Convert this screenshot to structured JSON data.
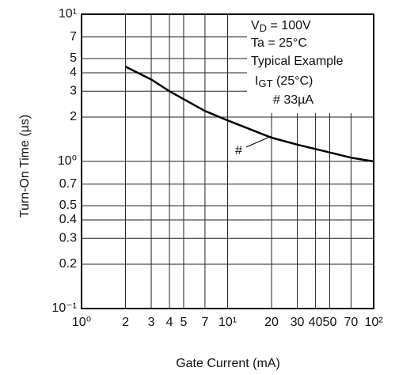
{
  "chart_data": {
    "type": "line",
    "x_label": "Gate Current  (mA)",
    "y_label": "Turn-On Time  (µs)",
    "xscale": "log",
    "yscale": "log",
    "grid": true,
    "xlim": [
      1,
      100
    ],
    "ylim": [
      0.1,
      10
    ],
    "xticks": [
      {
        "value": 1,
        "label": "10⁰"
      },
      2,
      3,
      4,
      5,
      7,
      {
        "value": 10,
        "label": "10¹"
      },
      20,
      30,
      40,
      50,
      70,
      {
        "value": 100,
        "label": "10²"
      }
    ],
    "yticks": [
      {
        "value": 0.1,
        "label": "10⁻¹"
      },
      0.2,
      0.3,
      0.4,
      0.5,
      0.7,
      {
        "value": 1,
        "label": "10⁰"
      },
      2,
      3,
      4,
      5,
      7,
      {
        "value": 10,
        "label": "10¹"
      }
    ],
    "x": [
      2,
      3,
      4,
      5,
      7,
      10,
      20,
      30,
      50,
      70,
      100
    ],
    "series": [
      {
        "color": "#000000",
        "values": [
          4.4,
          3.6,
          3.0,
          2.65,
          2.2,
          1.9,
          1.45,
          1.3,
          1.15,
          1.06,
          1.0
        ]
      }
    ],
    "annotations": [
      {
        "main": "V",
        "sub": "D",
        "tail": " = 100V"
      },
      {
        "main": "Ta = 25°C"
      },
      {
        "main": "Typical Example"
      },
      {
        "main": "I",
        "sub": "GT",
        "tail": " (25°C)"
      },
      {
        "main": "# 33µA"
      }
    ],
    "curve_label": "#"
  }
}
